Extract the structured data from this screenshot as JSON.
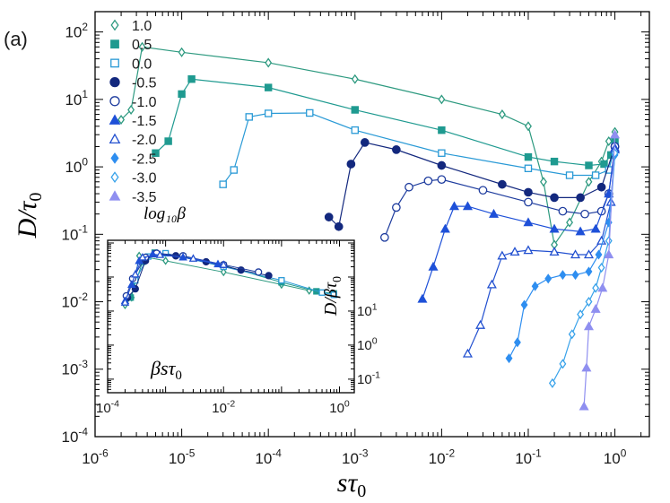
{
  "chart_data": [
    {
      "type": "line",
      "panel_label": "(a)",
      "xlabel": "sτ",
      "xlabel_sub": "0",
      "ylabel": "D/τ",
      "ylabel_sub": "0",
      "xscale": "log",
      "yscale": "log",
      "xlim": [
        1e-06,
        2.5
      ],
      "ylim": [
        0.0001,
        200
      ],
      "xticks": [
        {
          "base": "10",
          "exp": "-6"
        },
        {
          "base": "10",
          "exp": "-5"
        },
        {
          "base": "10",
          "exp": "-4"
        },
        {
          "base": "10",
          "exp": "-3"
        },
        {
          "base": "10",
          "exp": "-2"
        },
        {
          "base": "10",
          "exp": "-1"
        },
        {
          "base": "10",
          "exp": "0"
        }
      ],
      "yticks": [
        {
          "base": "10",
          "exp": "-4"
        },
        {
          "base": "10",
          "exp": "-3"
        },
        {
          "base": "10",
          "exp": "-2"
        },
        {
          "base": "10",
          "exp": "-1"
        },
        {
          "base": "10",
          "exp": "0"
        },
        {
          "base": "10",
          "exp": "1"
        },
        {
          "base": "10",
          "exp": "2"
        }
      ],
      "legend_title": "log₁₀β",
      "legend_position": "top-left",
      "series": [
        {
          "name": "1.0",
          "color": "#2e9a80",
          "marker": "diamond-open",
          "points": [
            [
              2e-06,
              5
            ],
            [
              2.6e-06,
              7
            ],
            [
              3.5e-06,
              60
            ],
            [
              1e-05,
              50
            ],
            [
              0.0001,
              35
            ],
            [
              0.001,
              20
            ],
            [
              0.01,
              10
            ],
            [
              0.05,
              6
            ],
            [
              0.1,
              4
            ],
            [
              0.15,
              0.6
            ],
            [
              0.2,
              0.07
            ],
            [
              0.3,
              0.15
            ],
            [
              0.5,
              0.6
            ],
            [
              0.7,
              1.2
            ],
            [
              0.85,
              2.4
            ],
            [
              1.0,
              3.3
            ]
          ]
        },
        {
          "name": "0.5",
          "color": "#1f9a90",
          "marker": "square-filled",
          "points": [
            [
              5e-06,
              1.6
            ],
            [
              7e-06,
              2.4
            ],
            [
              1e-05,
              12
            ],
            [
              1.3e-05,
              20
            ],
            [
              0.0001,
              15
            ],
            [
              0.001,
              7
            ],
            [
              0.01,
              3.5
            ],
            [
              0.1,
              1.4
            ],
            [
              0.2,
              1.2
            ],
            [
              0.5,
              1.05
            ],
            [
              0.75,
              1.1
            ],
            [
              0.9,
              1.5
            ],
            [
              1.0,
              2.4
            ]
          ]
        },
        {
          "name": "0.0",
          "color": "#2a9ad6",
          "marker": "square-open",
          "points": [
            [
              3e-05,
              0.55
            ],
            [
              4e-05,
              0.9
            ],
            [
              6e-05,
              5.5
            ],
            [
              0.0001,
              6.2
            ],
            [
              0.0003,
              6.3
            ],
            [
              0.001,
              3.5
            ],
            [
              0.01,
              1.6
            ],
            [
              0.1,
              0.95
            ],
            [
              0.3,
              0.75
            ],
            [
              0.6,
              0.75
            ],
            [
              0.85,
              0.9
            ],
            [
              1.0,
              2.0
            ]
          ]
        },
        {
          "name": "-0.5",
          "color": "#13287e",
          "marker": "circle-filled",
          "points": [
            [
              0.0005,
              0.18
            ],
            [
              0.00065,
              0.13
            ],
            [
              0.0009,
              1.1
            ],
            [
              0.0013,
              2.3
            ],
            [
              0.003,
              1.8
            ],
            [
              0.01,
              1.05
            ],
            [
              0.05,
              0.55
            ],
            [
              0.1,
              0.42
            ],
            [
              0.2,
              0.35
            ],
            [
              0.4,
              0.35
            ],
            [
              0.7,
              0.5
            ],
            [
              1.0,
              2.0
            ]
          ]
        },
        {
          "name": "-1.0",
          "color": "#1e3c9e",
          "marker": "circle-open",
          "points": [
            [
              0.0022,
              0.09
            ],
            [
              0.003,
              0.25
            ],
            [
              0.0042,
              0.5
            ],
            [
              0.007,
              0.62
            ],
            [
              0.01,
              0.65
            ],
            [
              0.03,
              0.45
            ],
            [
              0.1,
              0.3
            ],
            [
              0.25,
              0.22
            ],
            [
              0.45,
              0.2
            ],
            [
              0.7,
              0.22
            ],
            [
              0.85,
              0.4
            ],
            [
              1.0,
              2.0
            ]
          ]
        },
        {
          "name": "-1.5",
          "color": "#1e50d8",
          "marker": "triangle-filled",
          "points": [
            [
              0.006,
              0.011
            ],
            [
              0.008,
              0.033
            ],
            [
              0.011,
              0.12
            ],
            [
              0.014,
              0.26
            ],
            [
              0.02,
              0.26
            ],
            [
              0.04,
              0.2
            ],
            [
              0.1,
              0.15
            ],
            [
              0.2,
              0.12
            ],
            [
              0.4,
              0.11
            ],
            [
              0.6,
              0.12
            ],
            [
              0.85,
              0.4
            ],
            [
              1.0,
              1.9
            ]
          ]
        },
        {
          "name": "-2.0",
          "color": "#2250d0",
          "marker": "triangle-open",
          "points": [
            [
              0.02,
              0.0017
            ],
            [
              0.028,
              0.0045
            ],
            [
              0.038,
              0.018
            ],
            [
              0.05,
              0.048
            ],
            [
              0.07,
              0.055
            ],
            [
              0.1,
              0.058
            ],
            [
              0.2,
              0.055
            ],
            [
              0.35,
              0.05
            ],
            [
              0.5,
              0.05
            ],
            [
              0.7,
              0.08
            ],
            [
              0.9,
              0.3
            ],
            [
              1.0,
              1.8
            ]
          ]
        },
        {
          "name": "-2.5",
          "color": "#2e8ef0",
          "marker": "diamond-filled",
          "points": [
            [
              0.06,
              0.00145
            ],
            [
              0.075,
              0.0025
            ],
            [
              0.09,
              0.009
            ],
            [
              0.12,
              0.017
            ],
            [
              0.17,
              0.022
            ],
            [
              0.25,
              0.025
            ],
            [
              0.35,
              0.025
            ],
            [
              0.5,
              0.028
            ],
            [
              0.65,
              0.05
            ],
            [
              0.85,
              0.15
            ],
            [
              1.0,
              1.5
            ]
          ]
        },
        {
          "name": "-3.0",
          "color": "#38a2ea",
          "marker": "diamond-open",
          "points": [
            [
              0.19,
              0.00062
            ],
            [
              0.25,
              0.0012
            ],
            [
              0.32,
              0.0033
            ],
            [
              0.4,
              0.0065
            ],
            [
              0.5,
              0.01
            ],
            [
              0.6,
              0.016
            ],
            [
              0.7,
              0.032
            ],
            [
              0.85,
              0.08
            ],
            [
              1.0,
              1.6
            ]
          ]
        },
        {
          "name": "-3.5",
          "color": "#8f8ff0",
          "marker": "triangle-filled",
          "points": [
            [
              0.44,
              0.00028
            ],
            [
              0.47,
              0.00105
            ],
            [
              0.5,
              0.0043
            ],
            [
              0.6,
              0.0078
            ],
            [
              0.72,
              0.016
            ],
            [
              0.85,
              0.05
            ],
            [
              1.0,
              3.0
            ]
          ]
        }
      ]
    },
    {
      "type": "line",
      "xlabel": "βsτ",
      "xlabel_sub": "0",
      "ylabel": "D/βτ",
      "ylabel_sub": "0",
      "xscale": "log",
      "yscale": "log",
      "xlim": [
        0.0001,
        1.8
      ],
      "ylim": [
        0.04,
        1200
      ],
      "xticks": [
        {
          "base": "10",
          "exp": "-4"
        },
        {
          "base": "10",
          "exp": "-2"
        },
        {
          "base": "10",
          "exp": "0"
        }
      ],
      "yticks": [
        {
          "base": "10",
          "exp": "-1"
        },
        {
          "base": "10",
          "exp": "0"
        },
        {
          "base": "10",
          "exp": "1"
        }
      ],
      "series": [
        {
          "color": "#2e9a80",
          "marker": "diamond-open",
          "points": [
            [
              0.0002,
              15
            ],
            [
              0.00026,
              25
            ],
            [
              0.00035,
              420
            ],
            [
              0.001,
              300
            ],
            [
              0.01,
              140
            ],
            [
              0.1,
              60
            ],
            [
              0.3,
              40
            ]
          ]
        },
        {
          "color": "#1f9a90",
          "marker": "square-filled",
          "points": [
            [
              0.00025,
              25
            ],
            [
              0.0004,
              280
            ],
            [
              0.00065,
              520
            ],
            [
              0.002,
              400
            ],
            [
              0.01,
              220
            ],
            [
              0.1,
              70
            ],
            [
              0.4,
              38
            ],
            [
              0.8,
              33
            ]
          ]
        },
        {
          "color": "#2a9ad6",
          "marker": "square-open",
          "points": [
            [
              0.0003,
              80
            ],
            [
              0.0005,
              400
            ],
            [
              0.001,
              500
            ],
            [
              0.01,
              200
            ],
            [
              0.1,
              80
            ],
            [
              0.5,
              35
            ],
            [
              0.8,
              30
            ]
          ]
        },
        {
          "color": "#13287e",
          "marker": "circle-filled",
          "points": [
            [
              0.00022,
              25
            ],
            [
              0.0003,
              45
            ],
            [
              0.00045,
              300
            ],
            [
              0.00065,
              480
            ],
            [
              0.0015,
              420
            ],
            [
              0.005,
              280
            ],
            [
              0.02,
              160
            ],
            [
              0.06,
              110
            ]
          ]
        },
        {
          "color": "#1e3c9e",
          "marker": "circle-open",
          "points": [
            [
              0.00021,
              28
            ],
            [
              0.00027,
              90
            ],
            [
              0.00045,
              380
            ],
            [
              0.0007,
              500
            ],
            [
              0.002,
              420
            ],
            [
              0.01,
              230
            ],
            [
              0.04,
              140
            ]
          ]
        },
        {
          "color": "#1e50d8",
          "marker": "triangle-filled",
          "points": [
            [
              0.0002,
              20
            ],
            [
              0.00026,
              60
            ],
            [
              0.00035,
              300
            ],
            [
              0.0006,
              470
            ],
            [
              0.002,
              380
            ],
            [
              0.008,
              240
            ]
          ]
        },
        {
          "color": "#2250d0",
          "marker": "triangle-open",
          "points": [
            [
              0.0002,
              18
            ],
            [
              0.0003,
              120
            ],
            [
              0.0004,
              380
            ],
            [
              0.0008,
              450
            ],
            [
              0.003,
              350
            ],
            [
              0.01,
              230
            ]
          ]
        }
      ]
    }
  ]
}
